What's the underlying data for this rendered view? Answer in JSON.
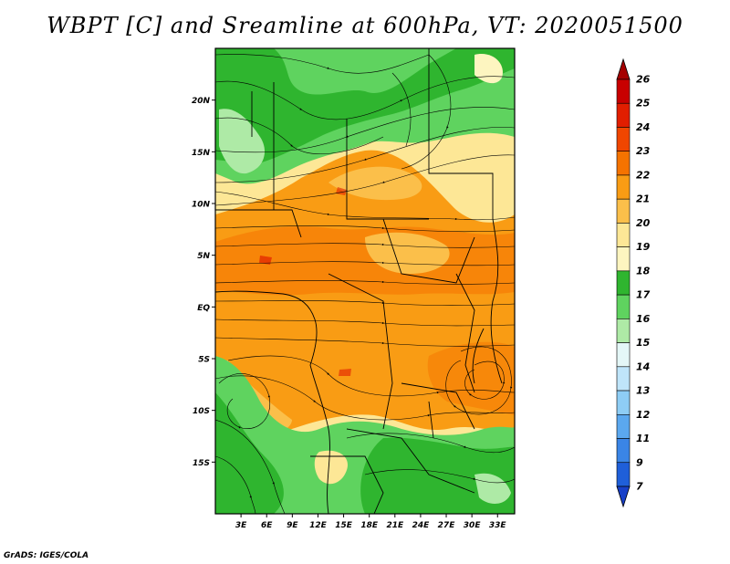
{
  "title": "WBPT [C] and Sreamline at 600hPa, VT: 2020051500",
  "credit": "GrADS: IGES/COLA",
  "map": {
    "lat_labels": [
      "20N",
      "15N",
      "10N",
      "5N",
      "EQ",
      "5S",
      "10S",
      "15S"
    ],
    "lat_values": [
      20,
      15,
      10,
      5,
      0,
      -5,
      -10,
      -15
    ],
    "lon_labels": [
      "3E",
      "6E",
      "9E",
      "12E",
      "15E",
      "18E",
      "21E",
      "24E",
      "27E",
      "30E",
      "33E"
    ],
    "lon_values": [
      3,
      6,
      9,
      12,
      15,
      18,
      21,
      24,
      27,
      30,
      33
    ],
    "lon_range": [
      0,
      35
    ],
    "lat_range": [
      -20,
      25
    ]
  },
  "colorbar": {
    "labels": [
      "26",
      "25",
      "24",
      "23",
      "22",
      "21",
      "20",
      "19",
      "18",
      "17",
      "16",
      "15",
      "14",
      "13",
      "12",
      "11",
      "9",
      "7"
    ],
    "colors": [
      "#a50000",
      "#c80000",
      "#e11e00",
      "#f04600",
      "#f57300",
      "#f99c14",
      "#fbbf4a",
      "#fde796",
      "#fdf5c0",
      "#2fb52f",
      "#5fd35f",
      "#aeeaa6",
      "#e4f7f7",
      "#bfe5fa",
      "#8ecdf5",
      "#5ba8ef",
      "#3a85e6",
      "#1f5fd9",
      "#1840c8"
    ]
  }
}
